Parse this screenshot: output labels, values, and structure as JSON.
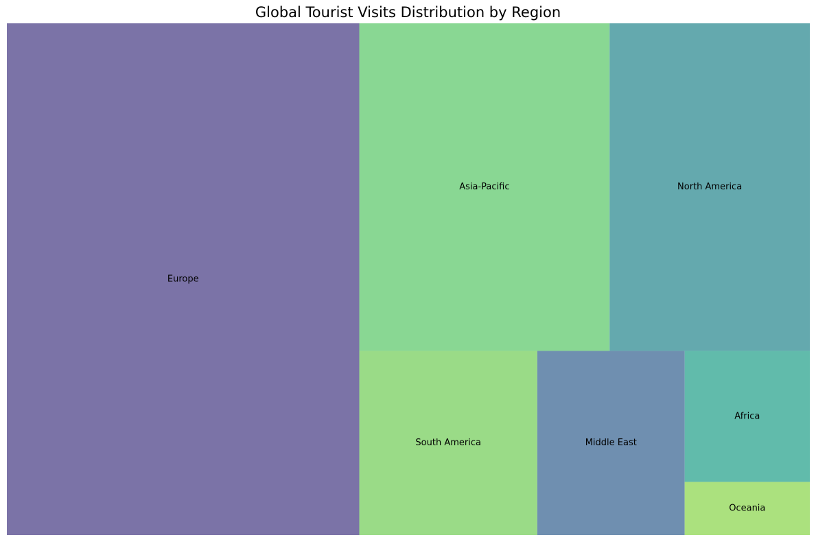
{
  "chart_data": {
    "type": "treemap",
    "title": "Global Tourist Visits Distribution by Region",
    "series": [
      {
        "label": "Europe",
        "value": 704,
        "color": "#7b73a7"
      },
      {
        "label": "Asia-Pacific",
        "value": 320,
        "color": "#89d793"
      },
      {
        "label": "North America",
        "value": 256,
        "color": "#64a9ae"
      },
      {
        "label": "South America",
        "value": 128,
        "color": "#9adb87"
      },
      {
        "label": "Middle East",
        "value": 106,
        "color": "#6f8fb0"
      },
      {
        "label": "Africa",
        "value": 64,
        "color": "#61bbab"
      },
      {
        "label": "Oceania",
        "value": 26,
        "color": "#abe17e"
      }
    ]
  }
}
